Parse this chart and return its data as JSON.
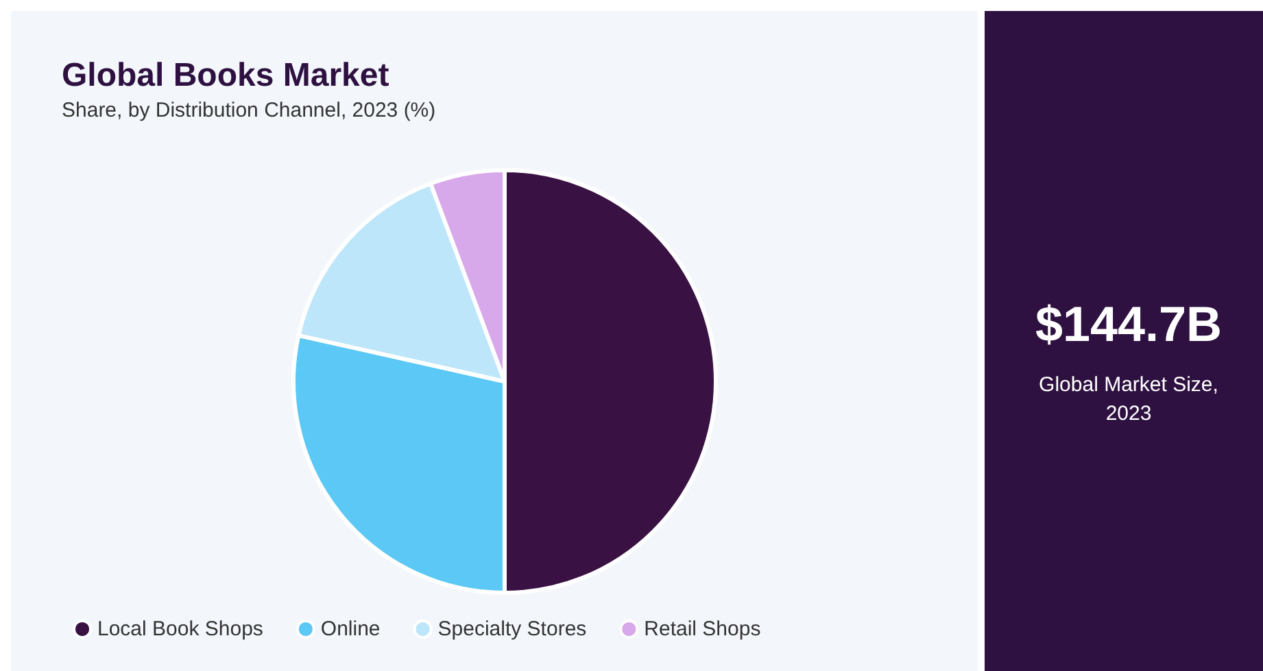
{
  "chart_data": {
    "type": "pie",
    "title": "Global Books Market",
    "subtitle": "Share, by Distribution Channel, 2023 (%)",
    "categories": [
      "Local Book Shops",
      "Online",
      "Specialty Stores",
      "Retail Shops"
    ],
    "values": [
      50,
      28.5,
      15.8,
      5.7
    ],
    "colors": [
      "#3a1143",
      "#5bc8f5",
      "#bde6fa",
      "#d7a8ea"
    ],
    "legend": "bottom",
    "annotations": [
      "$144.7B",
      "Global Market Size, 2023"
    ]
  }
}
